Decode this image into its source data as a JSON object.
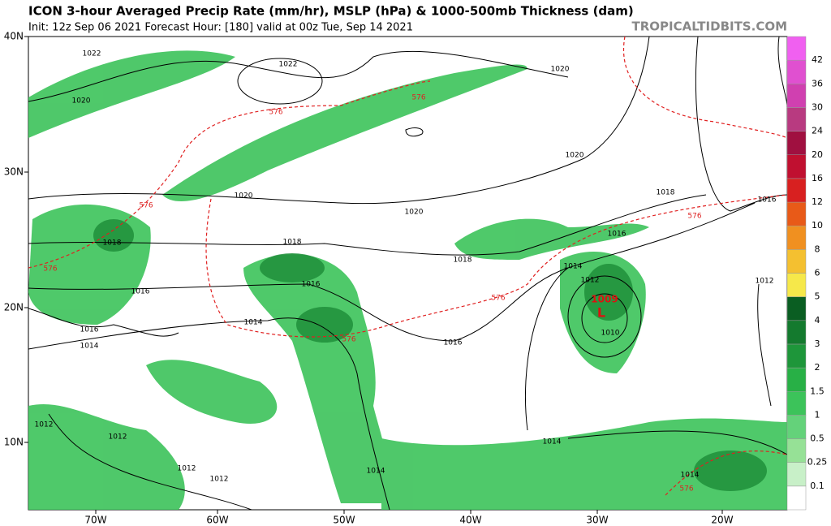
{
  "header": {
    "title": "ICON 3-hour Averaged Precip Rate (mm/hr), MSLP (hPa) & 1000-500mb Thickness (dam)",
    "subtitle": "Init: 12z Sep 06 2021   Forecast Hour: [180]   valid at 00z Tue, Sep 14 2021",
    "watermark": "TROPICALTIDBITS.COM"
  },
  "map": {
    "lat_labels": [
      "40N",
      "30N",
      "20N",
      "10N"
    ],
    "lon_labels": [
      "70W",
      "60W",
      "50W",
      "40W",
      "30W",
      "20W"
    ],
    "isobar_labels": [
      "1022",
      "1022",
      "1020",
      "1020",
      "1020",
      "1020",
      "1020",
      "1018",
      "1018",
      "1018",
      "1018",
      "1016",
      "1016",
      "1016",
      "1016",
      "1016",
      "1016",
      "1014",
      "1014",
      "1014",
      "1014",
      "1014",
      "1014",
      "1012",
      "1012",
      "1012",
      "1012",
      "1012",
      "1012",
      "1010"
    ],
    "low_center": {
      "pressure": "1009",
      "symbol": "L"
    },
    "thickness_labels": [
      "576",
      "576",
      "576",
      "576",
      "576",
      "576",
      "576",
      "576"
    ]
  },
  "colorbar": {
    "levels": [
      0.1,
      0.25,
      0.5,
      1,
      1.5,
      2,
      3,
      4,
      5,
      6,
      8,
      10,
      12,
      16,
      20,
      24,
      30,
      36,
      42
    ]
  }
}
